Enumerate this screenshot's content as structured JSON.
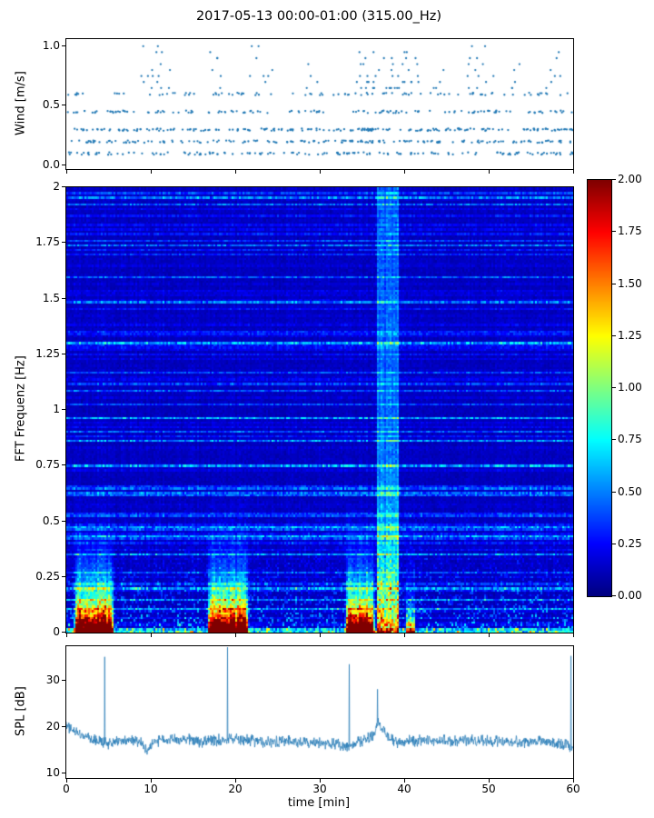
{
  "title": "2017-05-13 00:00-01:00 (315.00_Hz)",
  "accent_color": "#1f77b4",
  "chart_data": [
    {
      "type": "scatter",
      "name": "wind-speed",
      "ylabel": "Wind [m/s]",
      "yticks": [
        "0.0",
        "0.5",
        "1.0"
      ],
      "ytick_values": [
        0,
        0.5,
        1
      ],
      "ylim": [
        -0.03,
        1.06
      ],
      "xlim": [
        0,
        60
      ],
      "marker_color": "#1f77b4",
      "bands": [
        {
          "y": 0.1,
          "count": 150
        },
        {
          "y": 0.2,
          "count": 175
        },
        {
          "y": 0.3,
          "count": 205
        },
        {
          "y": 0.45,
          "count": 135
        },
        {
          "y": 0.6,
          "count": 95
        }
      ],
      "high_levels": [
        0.65,
        0.7,
        0.75,
        0.8,
        0.85,
        0.9,
        0.95,
        1.0
      ],
      "high_clusters": [
        {
          "x": 9.8,
          "spread": 1.2,
          "count": 10
        },
        {
          "x": 11.5,
          "spread": 0.8,
          "count": 6
        },
        {
          "x": 17.5,
          "spread": 1.0,
          "count": 6
        },
        {
          "x": 23.0,
          "spread": 1.5,
          "count": 8
        },
        {
          "x": 29.0,
          "spread": 0.8,
          "count": 4
        },
        {
          "x": 35.5,
          "spread": 1.2,
          "count": 12
        },
        {
          "x": 37.5,
          "spread": 1.2,
          "count": 14
        },
        {
          "x": 39.5,
          "spread": 1.0,
          "count": 10
        },
        {
          "x": 41.0,
          "spread": 1.0,
          "count": 8
        },
        {
          "x": 44.0,
          "spread": 0.7,
          "count": 4
        },
        {
          "x": 47.8,
          "spread": 1.0,
          "count": 9
        },
        {
          "x": 50.0,
          "spread": 0.7,
          "count": 4
        },
        {
          "x": 53.5,
          "spread": 0.8,
          "count": 5
        },
        {
          "x": 57.5,
          "spread": 1.0,
          "count": 7
        }
      ]
    },
    {
      "type": "heatmap",
      "name": "fft-spectrogram",
      "ylabel": "FFT Frequenz [Hz]",
      "yticks": [
        "0",
        "0.25",
        "0.5",
        "0.75",
        "1",
        "1.25",
        "1.5",
        "1.75",
        "2"
      ],
      "ytick_values": [
        0,
        0.25,
        0.5,
        0.75,
        1,
        1.25,
        1.5,
        1.75,
        2
      ],
      "ylim": [
        0,
        2
      ],
      "xlim": [
        0,
        60
      ],
      "colormap": "jet",
      "clim": [
        0,
        2
      ],
      "colorbar_ticks": [
        "0.00",
        "0.25",
        "0.50",
        "0.75",
        "1.00",
        "1.25",
        "1.50",
        "1.75",
        "2.00"
      ],
      "colorbar_tick_values": [
        0,
        0.25,
        0.5,
        0.75,
        1,
        1.25,
        1.5,
        1.75,
        2
      ],
      "background_level": 0.08,
      "events": [
        {
          "t0": 0.8,
          "t1": 5.6
        },
        {
          "t0": 16.6,
          "t1": 21.6
        },
        {
          "t0": 33.0,
          "t1": 36.6
        }
      ],
      "event_profile": {
        "core_amp": 1.6,
        "core_decay": 0.05,
        "mid_amp": 1.0,
        "mid_decay": 0.1,
        "halo_amp": 0.6,
        "halo_width": 0.28
      },
      "stripe": {
        "t0": 36.9,
        "t1": 39.4,
        "level": 0.22
      },
      "minor_stripe": {
        "t0": 40.2,
        "t1": 41.3
      }
    },
    {
      "type": "line",
      "name": "spl",
      "ylabel": "SPL [dB]",
      "xlabel": "time [min]",
      "yticks": [
        "10",
        "20",
        "30"
      ],
      "ytick_values": [
        10,
        20,
        30
      ],
      "ylim": [
        9,
        37.5
      ],
      "xlim": [
        0,
        60
      ],
      "xticks": [
        "0",
        "10",
        "20",
        "30",
        "40",
        "50",
        "60"
      ],
      "xtick_values": [
        0,
        10,
        20,
        30,
        40,
        50,
        60
      ],
      "line_color": "#1f77b4",
      "noise_amp": 1.5,
      "baseline": [
        [
          0,
          20.4
        ],
        [
          1,
          19.2
        ],
        [
          2,
          18.2
        ],
        [
          3,
          17.4
        ],
        [
          4.4,
          16.8
        ],
        [
          5,
          16.4
        ],
        [
          6,
          17.2
        ],
        [
          7.5,
          17.3
        ],
        [
          9,
          16.6
        ],
        [
          9.7,
          14.9
        ],
        [
          10.3,
          16.8
        ],
        [
          12,
          17.1
        ],
        [
          14,
          17.4
        ],
        [
          16,
          17.0
        ],
        [
          18,
          17.3
        ],
        [
          20,
          17.5
        ],
        [
          22,
          17.0
        ],
        [
          24,
          16.8
        ],
        [
          26,
          17.1
        ],
        [
          28,
          16.8
        ],
        [
          30,
          16.7
        ],
        [
          32,
          16.5
        ],
        [
          33.3,
          15.7
        ],
        [
          34.3,
          16.6
        ],
        [
          35.5,
          17.2
        ],
        [
          36.3,
          18.2
        ],
        [
          36.9,
          21.0
        ],
        [
          37.4,
          19.5
        ],
        [
          38.2,
          17.4
        ],
        [
          39.5,
          16.7
        ],
        [
          41,
          17.0
        ],
        [
          43,
          17.2
        ],
        [
          45,
          17.0
        ],
        [
          47,
          17.2
        ],
        [
          49,
          16.9
        ],
        [
          51,
          17.0
        ],
        [
          53,
          16.8
        ],
        [
          55,
          16.9
        ],
        [
          57,
          16.6
        ],
        [
          58.5,
          16.4
        ],
        [
          59.5,
          16.2
        ],
        [
          60,
          15.0
        ]
      ],
      "spikes": [
        {
          "x": 4.55,
          "y": 35.2
        },
        {
          "x": 19.1,
          "y": 37.3
        },
        {
          "x": 33.5,
          "y": 33.6
        },
        {
          "x": 36.85,
          "y": 28.2
        },
        {
          "x": 59.75,
          "y": 35.4
        }
      ]
    }
  ]
}
